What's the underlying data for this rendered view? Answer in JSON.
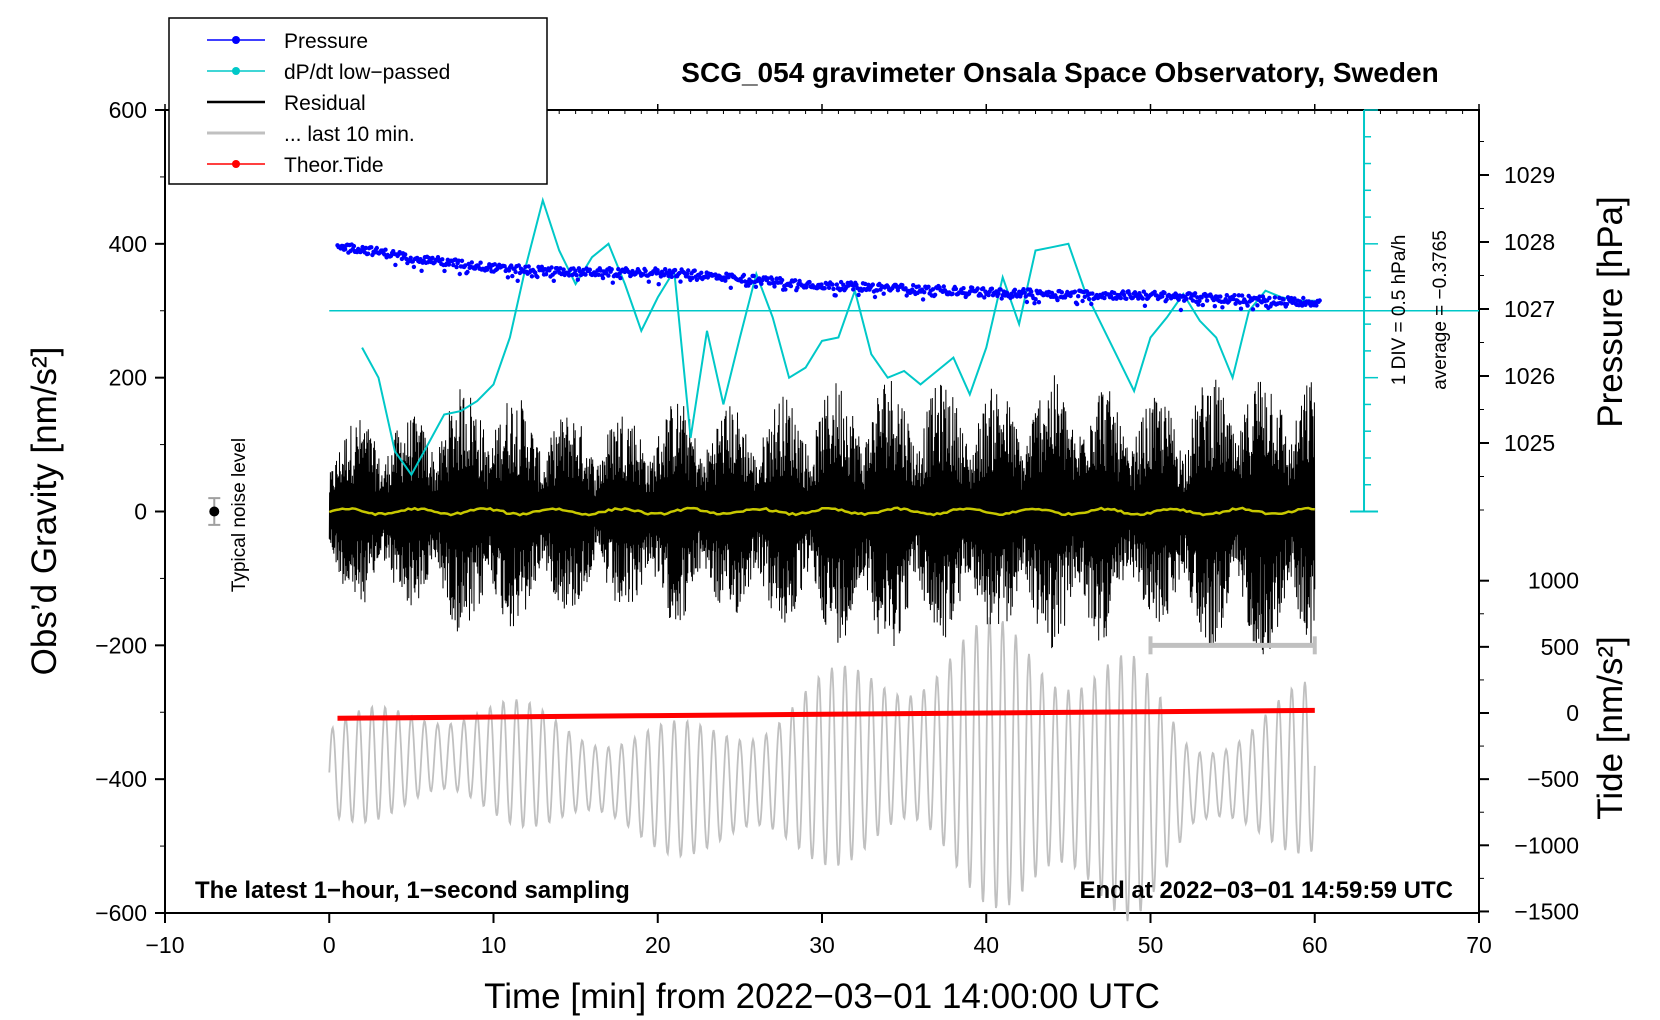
{
  "chart_data": {
    "type": "line",
    "title": "SCG_054 gravimeter Onsala Space Observatory, Sweden",
    "xlabel": "Time [min] from 2022−03−01 14:00:00 UTC",
    "ylabel_left": "Obs’d Gravity [nm/s²]",
    "ylabel_right_top": "Pressure [hPa]",
    "ylabel_right_bottom": "Tide [nm/s²]",
    "xlim": [
      -10,
      70
    ],
    "ylim": [
      -600,
      600
    ],
    "x_ticks": [
      "−10",
      "0",
      "10",
      "20",
      "30",
      "40",
      "50",
      "60",
      "70"
    ],
    "y_ticks": [
      "−600",
      "−400",
      "−200",
      "0",
      "200",
      "400",
      "600"
    ],
    "pressure_ticks": [
      "1025",
      "1026",
      "1027",
      "1028",
      "1029"
    ],
    "tide_ticks": [
      "−1500",
      "−1000",
      "−500",
      "0",
      "500",
      "1000"
    ],
    "pressure_axis_range": [
      1024,
      1030
    ],
    "tide_axis_range": [
      -1500,
      1000
    ],
    "legend": [
      "Pressure",
      "dP/dt low−passed",
      "Residual",
      "... last 10 min.",
      "Theor.Tide"
    ],
    "dpdt_scale_note": "1 DIV = 0.5 hPa/h",
    "dpdt_average_note": "average = −0.3765",
    "noise_label": "Typical noise level",
    "note_left": "The latest 1−hour, 1−second sampling",
    "note_right": "End at 2022−03−01 14:59:59 UTC",
    "series": [
      {
        "name": "Pressure",
        "color": "#0000ff",
        "unit": "hPa",
        "x": [
          0.5,
          5,
          10,
          15,
          20,
          25,
          30,
          35,
          40,
          45,
          50,
          55,
          60
        ],
        "values": [
          1027.95,
          1027.75,
          1027.6,
          1027.55,
          1027.55,
          1027.45,
          1027.35,
          1027.3,
          1027.25,
          1027.22,
          1027.2,
          1027.15,
          1027.1
        ]
      },
      {
        "name": "dP/dt low−passed",
        "color": "#00c8c8",
        "unit": "gravity-frame",
        "x": [
          2,
          3,
          4,
          5,
          6,
          7,
          8,
          9,
          10,
          11,
          12,
          13,
          14,
          15,
          16,
          17,
          18,
          19,
          20,
          21,
          22,
          23,
          24,
          25,
          26,
          27,
          28,
          29,
          30,
          31,
          32,
          33,
          34,
          35,
          36,
          37,
          38,
          39,
          40,
          41,
          42,
          43,
          44,
          45,
          46,
          47,
          48,
          49,
          50,
          51,
          52,
          53,
          54,
          55,
          56,
          57,
          58,
          59,
          60
        ],
        "values": [
          245,
          200,
          90,
          55,
          100,
          145,
          150,
          165,
          190,
          260,
          370,
          465,
          390,
          340,
          380,
          400,
          340,
          270,
          320,
          360,
          110,
          270,
          160,
          260,
          355,
          290,
          200,
          215,
          255,
          260,
          330,
          235,
          200,
          210,
          190,
          210,
          230,
          175,
          245,
          350,
          280,
          390,
          395,
          400,
          330,
          280,
          230,
          180,
          260,
          290,
          325,
          285,
          260,
          200,
          300,
          330,
          320,
          315,
          315
        ]
      },
      {
        "name": "Residual",
        "color": "#000000",
        "x_range": [
          0,
          60
        ],
        "envelope_amplitude": [
          120,
          150,
          140,
          180,
          200,
          170,
          150,
          150,
          160,
          170,
          160,
          170,
          180,
          200,
          210,
          200,
          190,
          190,
          200,
          220,
          180,
          170,
          200,
          210,
          220,
          210
        ]
      },
      {
        "name": "Residual low−passed",
        "color": "#c8c800",
        "x_range": [
          0,
          60
        ],
        "values": [
          0
        ]
      },
      {
        "name": "... last 10 min.",
        "color": "#c0c0c0",
        "unit": "nm/s² (tide axis)",
        "x_range": [
          0,
          60
        ],
        "envelope_amplitude": [
          400,
          420,
          450,
          460,
          430,
          470,
          500,
          600,
          700,
          800,
          900,
          1100,
          1200,
          1000,
          400,
          500,
          650
        ]
      },
      {
        "name": "Theor.Tide",
        "color": "#ff0000",
        "unit": "nm/s² (tide axis)",
        "x": [
          0.5,
          10,
          20,
          30,
          40,
          50,
          60
        ],
        "values": [
          -40,
          -30,
          -20,
          -10,
          0,
          10,
          20
        ]
      }
    ],
    "noise_bar": {
      "x": -7,
      "center": 0,
      "half_range": 20
    },
    "last10_bar": {
      "x": [
        50,
        60
      ],
      "y": -200
    }
  }
}
